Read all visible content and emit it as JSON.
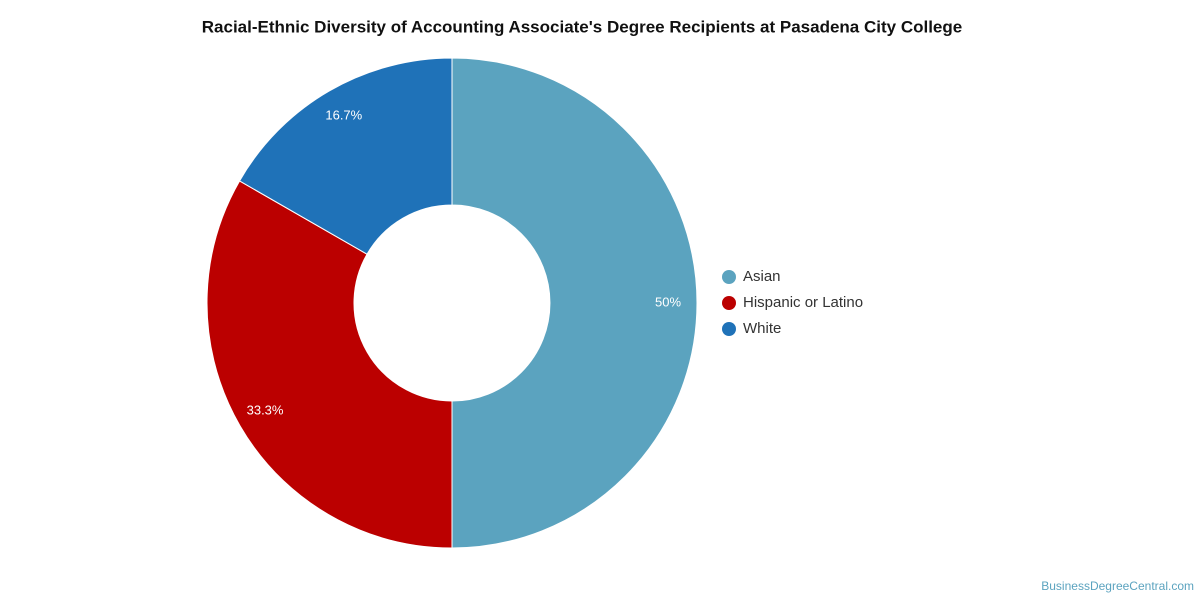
{
  "chart_data": {
    "type": "donut",
    "title": "Racial-Ethnic Diversity of Accounting Associate's Degree Recipients at Pasadena City College",
    "categories": [
      "Asian",
      "Hispanic or Latino",
      "White"
    ],
    "values": [
      50,
      33.3,
      16.7
    ],
    "value_labels": [
      "50%",
      "33.3%",
      "16.7%"
    ],
    "colors": [
      "#5ba3bf",
      "#bb0000",
      "#1f72b8"
    ],
    "legend": "right",
    "source": "BusinessDegreeCentral.com"
  }
}
